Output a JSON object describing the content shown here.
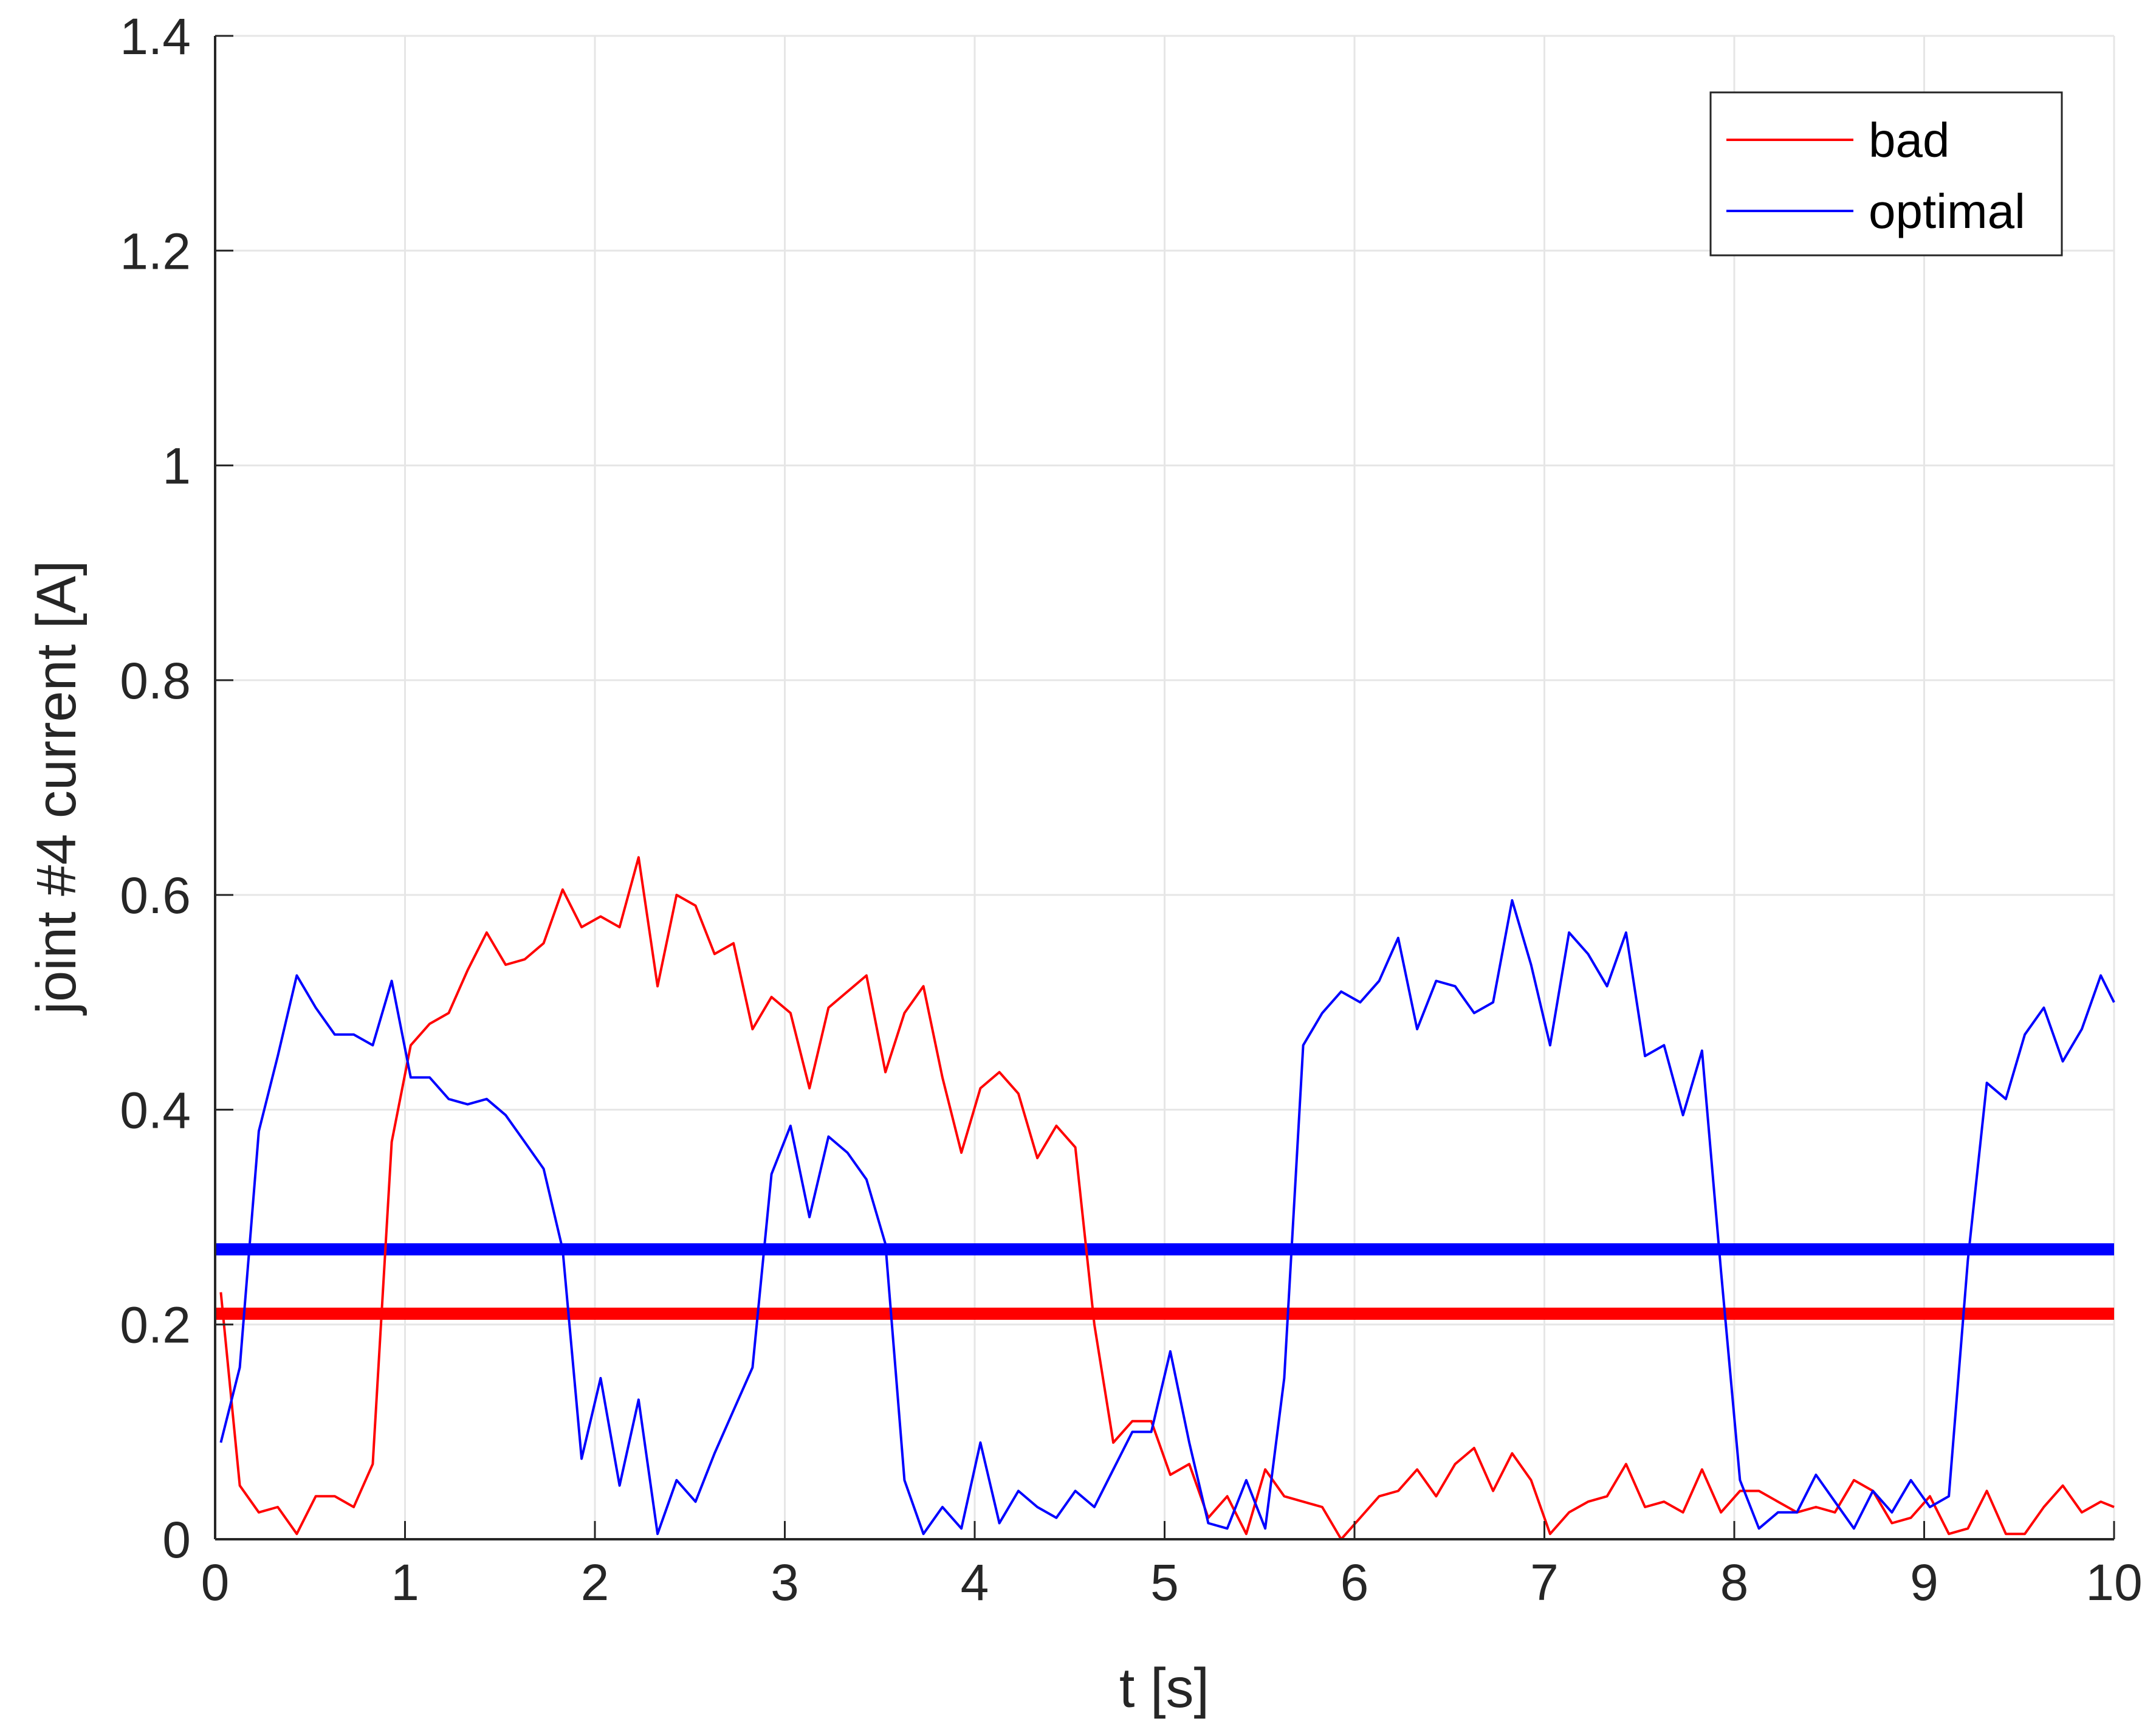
{
  "chart_data": {
    "type": "line",
    "xlabel": "t [s]",
    "ylabel": "joint #4 current [A]",
    "xlim": [
      0,
      10
    ],
    "ylim": [
      0,
      1.4
    ],
    "xticks": [
      0,
      1,
      2,
      3,
      4,
      5,
      6,
      7,
      8,
      9,
      10
    ],
    "yticks": [
      0,
      0.2,
      0.4,
      0.6,
      0.8,
      1,
      1.2,
      1.4
    ],
    "xtick_labels": [
      "0",
      "1",
      "2",
      "3",
      "4",
      "5",
      "6",
      "7",
      "8",
      "9",
      "10"
    ],
    "ytick_labels": [
      "0",
      "0.2",
      "0.4",
      "0.6",
      "0.8",
      "1",
      "1.2",
      "1.4"
    ],
    "grid": true,
    "legend": {
      "position": "top-right",
      "entries": [
        "bad",
        "optimal"
      ]
    },
    "series": [
      {
        "name": "bad",
        "color": "#ff0000",
        "points": [
          [
            0.03,
            0.23
          ],
          [
            0.13,
            0.05
          ],
          [
            0.23,
            0.025
          ],
          [
            0.33,
            0.03
          ],
          [
            0.43,
            0.005
          ],
          [
            0.53,
            0.04
          ],
          [
            0.63,
            0.04
          ],
          [
            0.73,
            0.03
          ],
          [
            0.83,
            0.07
          ],
          [
            0.93,
            0.37
          ],
          [
            1.03,
            0.46
          ],
          [
            1.13,
            0.48
          ],
          [
            1.23,
            0.49
          ],
          [
            1.33,
            0.53
          ],
          [
            1.43,
            0.565
          ],
          [
            1.53,
            0.535
          ],
          [
            1.63,
            0.54
          ],
          [
            1.73,
            0.555
          ],
          [
            1.83,
            0.605
          ],
          [
            1.93,
            0.57
          ],
          [
            2.03,
            0.58
          ],
          [
            2.13,
            0.57
          ],
          [
            2.23,
            0.635
          ],
          [
            2.33,
            0.515
          ],
          [
            2.43,
            0.6
          ],
          [
            2.53,
            0.59
          ],
          [
            2.63,
            0.545
          ],
          [
            2.73,
            0.555
          ],
          [
            2.83,
            0.475
          ],
          [
            2.93,
            0.505
          ],
          [
            3.03,
            0.49
          ],
          [
            3.13,
            0.42
          ],
          [
            3.23,
            0.495
          ],
          [
            3.33,
            0.51
          ],
          [
            3.43,
            0.525
          ],
          [
            3.53,
            0.435
          ],
          [
            3.63,
            0.49
          ],
          [
            3.73,
            0.515
          ],
          [
            3.83,
            0.43
          ],
          [
            3.93,
            0.36
          ],
          [
            4.03,
            0.42
          ],
          [
            4.13,
            0.435
          ],
          [
            4.23,
            0.415
          ],
          [
            4.33,
            0.355
          ],
          [
            4.43,
            0.385
          ],
          [
            4.53,
            0.365
          ],
          [
            4.63,
            0.2
          ],
          [
            4.73,
            0.09
          ],
          [
            4.83,
            0.11
          ],
          [
            4.93,
            0.11
          ],
          [
            5.03,
            0.06
          ],
          [
            5.13,
            0.07
          ],
          [
            5.23,
            0.02
          ],
          [
            5.33,
            0.04
          ],
          [
            5.43,
            0.005
          ],
          [
            5.53,
            0.065
          ],
          [
            5.63,
            0.04
          ],
          [
            5.73,
            0.035
          ],
          [
            5.83,
            0.03
          ],
          [
            5.93,
            0.0
          ],
          [
            6.03,
            0.02
          ],
          [
            6.13,
            0.04
          ],
          [
            6.23,
            0.045
          ],
          [
            6.33,
            0.065
          ],
          [
            6.43,
            0.04
          ],
          [
            6.53,
            0.07
          ],
          [
            6.63,
            0.085
          ],
          [
            6.73,
            0.045
          ],
          [
            6.83,
            0.08
          ],
          [
            6.93,
            0.055
          ],
          [
            7.03,
            0.005
          ],
          [
            7.13,
            0.025
          ],
          [
            7.23,
            0.035
          ],
          [
            7.33,
            0.04
          ],
          [
            7.43,
            0.07
          ],
          [
            7.53,
            0.03
          ],
          [
            7.63,
            0.035
          ],
          [
            7.73,
            0.025
          ],
          [
            7.83,
            0.065
          ],
          [
            7.93,
            0.025
          ],
          [
            8.03,
            0.045
          ],
          [
            8.13,
            0.045
          ],
          [
            8.23,
            0.035
          ],
          [
            8.33,
            0.025
          ],
          [
            8.43,
            0.03
          ],
          [
            8.53,
            0.025
          ],
          [
            8.63,
            0.055
          ],
          [
            8.73,
            0.045
          ],
          [
            8.83,
            0.015
          ],
          [
            8.93,
            0.02
          ],
          [
            9.03,
            0.04
          ],
          [
            9.13,
            0.005
          ],
          [
            9.23,
            0.01
          ],
          [
            9.33,
            0.045
          ],
          [
            9.43,
            0.005
          ],
          [
            9.53,
            0.005
          ],
          [
            9.63,
            0.03
          ],
          [
            9.73,
            0.05
          ],
          [
            9.83,
            0.025
          ],
          [
            9.93,
            0.035
          ],
          [
            10.0,
            0.03
          ]
        ],
        "mean_line": 0.21
      },
      {
        "name": "optimal",
        "color": "#0000ff",
        "points": [
          [
            0.03,
            0.09
          ],
          [
            0.13,
            0.16
          ],
          [
            0.23,
            0.38
          ],
          [
            0.33,
            0.45
          ],
          [
            0.43,
            0.525
          ],
          [
            0.53,
            0.495
          ],
          [
            0.63,
            0.47
          ],
          [
            0.73,
            0.47
          ],
          [
            0.83,
            0.46
          ],
          [
            0.93,
            0.52
          ],
          [
            1.03,
            0.43
          ],
          [
            1.13,
            0.43
          ],
          [
            1.23,
            0.41
          ],
          [
            1.33,
            0.405
          ],
          [
            1.43,
            0.41
          ],
          [
            1.53,
            0.395
          ],
          [
            1.63,
            0.37
          ],
          [
            1.73,
            0.345
          ],
          [
            1.83,
            0.27
          ],
          [
            1.93,
            0.075
          ],
          [
            2.03,
            0.15
          ],
          [
            2.13,
            0.05
          ],
          [
            2.23,
            0.13
          ],
          [
            2.33,
            0.005
          ],
          [
            2.43,
            0.055
          ],
          [
            2.53,
            0.035
          ],
          [
            2.63,
            0.08
          ],
          [
            2.73,
            0.12
          ],
          [
            2.83,
            0.16
          ],
          [
            2.93,
            0.34
          ],
          [
            3.03,
            0.385
          ],
          [
            3.13,
            0.3
          ],
          [
            3.23,
            0.375
          ],
          [
            3.33,
            0.36
          ],
          [
            3.43,
            0.335
          ],
          [
            3.53,
            0.275
          ],
          [
            3.63,
            0.055
          ],
          [
            3.73,
            0.005
          ],
          [
            3.83,
            0.03
          ],
          [
            3.93,
            0.01
          ],
          [
            4.03,
            0.09
          ],
          [
            4.13,
            0.015
          ],
          [
            4.23,
            0.045
          ],
          [
            4.33,
            0.03
          ],
          [
            4.43,
            0.02
          ],
          [
            4.53,
            0.045
          ],
          [
            4.63,
            0.03
          ],
          [
            4.73,
            0.065
          ],
          [
            4.83,
            0.1
          ],
          [
            4.93,
            0.1
          ],
          [
            5.03,
            0.175
          ],
          [
            5.13,
            0.09
          ],
          [
            5.23,
            0.015
          ],
          [
            5.33,
            0.01
          ],
          [
            5.43,
            0.055
          ],
          [
            5.53,
            0.01
          ],
          [
            5.63,
            0.15
          ],
          [
            5.73,
            0.46
          ],
          [
            5.83,
            0.49
          ],
          [
            5.93,
            0.51
          ],
          [
            6.03,
            0.5
          ],
          [
            6.13,
            0.52
          ],
          [
            6.23,
            0.56
          ],
          [
            6.33,
            0.475
          ],
          [
            6.43,
            0.52
          ],
          [
            6.53,
            0.515
          ],
          [
            6.63,
            0.49
          ],
          [
            6.73,
            0.5
          ],
          [
            6.83,
            0.595
          ],
          [
            6.93,
            0.535
          ],
          [
            7.03,
            0.46
          ],
          [
            7.13,
            0.565
          ],
          [
            7.23,
            0.545
          ],
          [
            7.33,
            0.515
          ],
          [
            7.43,
            0.565
          ],
          [
            7.53,
            0.45
          ],
          [
            7.63,
            0.46
          ],
          [
            7.73,
            0.395
          ],
          [
            7.83,
            0.455
          ],
          [
            7.93,
            0.25
          ],
          [
            8.03,
            0.055
          ],
          [
            8.13,
            0.01
          ],
          [
            8.23,
            0.025
          ],
          [
            8.33,
            0.025
          ],
          [
            8.43,
            0.06
          ],
          [
            8.53,
            0.035
          ],
          [
            8.63,
            0.01
          ],
          [
            8.73,
            0.045
          ],
          [
            8.83,
            0.025
          ],
          [
            8.93,
            0.055
          ],
          [
            9.03,
            0.03
          ],
          [
            9.13,
            0.04
          ],
          [
            9.23,
            0.26
          ],
          [
            9.33,
            0.425
          ],
          [
            9.43,
            0.41
          ],
          [
            9.53,
            0.47
          ],
          [
            9.63,
            0.495
          ],
          [
            9.73,
            0.445
          ],
          [
            9.83,
            0.475
          ],
          [
            9.93,
            0.525
          ],
          [
            10.0,
            0.5
          ]
        ],
        "mean_line": 0.27
      }
    ]
  }
}
